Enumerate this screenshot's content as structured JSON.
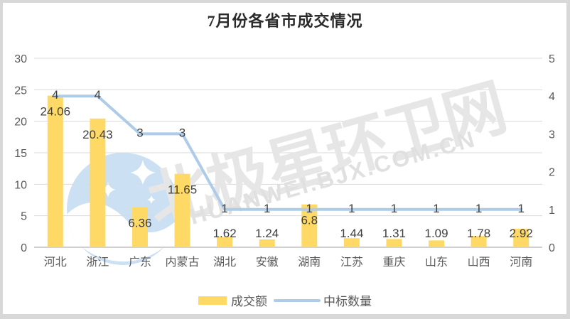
{
  "title": "7月份各省市成交情况",
  "chart_data": {
    "type": "combo",
    "title": "7月份各省市成交情况",
    "xlabel": "",
    "ylabel": "",
    "categories": [
      "河北",
      "浙江",
      "广东",
      "内蒙古",
      "湖北",
      "安徽",
      "湖南",
      "江苏",
      "重庆",
      "山东",
      "山西",
      "河南"
    ],
    "series": [
      {
        "name": "成交额",
        "type": "bar",
        "axis": "left",
        "values": [
          24.06,
          20.43,
          6.36,
          11.65,
          1.62,
          1.24,
          6.8,
          1.44,
          1.31,
          1.09,
          1.78,
          2.92
        ]
      },
      {
        "name": "中标数量",
        "type": "line",
        "axis": "right",
        "values": [
          4,
          4,
          3,
          3,
          1,
          1,
          1,
          1,
          1,
          1,
          1,
          1
        ]
      }
    ],
    "left_axis": {
      "min": 0,
      "max": 30,
      "ticks": [
        0,
        5,
        10,
        15,
        20,
        25,
        30
      ]
    },
    "right_axis": {
      "min": 0,
      "max": 5,
      "ticks": [
        0,
        1,
        2,
        3,
        4,
        5
      ]
    },
    "grid": true,
    "legend_position": "bottom"
  },
  "legend": [
    {
      "label": "成交额",
      "swatch": "bar"
    },
    {
      "label": "中标数量",
      "swatch": "line"
    }
  ],
  "watermark": {
    "cjk": "北极星环卫网",
    "latin": "HUANWEI.BJX.COM.CN",
    "logo": "bjx-star-logo"
  },
  "colors": {
    "bar": "#FFD966",
    "line": "#AECBE8",
    "gridline": "#DADADA",
    "axis_line": "#C0C0C0",
    "tick_text": "#595959",
    "category_text": "#595959",
    "data_label_text": "#3F3F3F",
    "title_text": "#2B2B2B",
    "watermark_cjk": "#E6E6E6",
    "watermark_latin": "#E0E0E0",
    "logo_blue": "#CBE0F3",
    "frame_border": "#D8D8D8"
  }
}
